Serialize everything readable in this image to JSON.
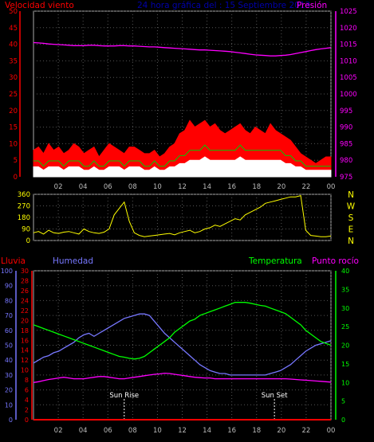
{
  "header": {
    "left_label": "Velocidad viento",
    "center_label": "24 hora gráfica del : 15 Septiembre 2013",
    "right_label": "Presión"
  },
  "colors": {
    "wind_axis": "#ff0000",
    "pressure": "#ff00ff",
    "direction": "#ffff00",
    "rain": "#ff0000",
    "humidity": "#7777ff",
    "temperature": "#00ff00",
    "dewpoint": "#ff00ff",
    "gust": "#ff0000",
    "avg_wind": "#ffffff",
    "wind_green": "#00cc00"
  },
  "chart_data": [
    {
      "type": "area",
      "panel": "wind-pressure",
      "x_ticks": [
        "02",
        "04",
        "06",
        "08",
        "10",
        "12",
        "14",
        "16",
        "18",
        "20",
        "22",
        "00"
      ],
      "y_left": {
        "label": "Velocidad viento",
        "ylim": [
          0,
          50
        ],
        "ticks": [
          0,
          5,
          10,
          15,
          20,
          25,
          30,
          35,
          40,
          45,
          50
        ]
      },
      "y_right": {
        "label": "Presión",
        "ylim": [
          975,
          1025
        ],
        "ticks": [
          975,
          980,
          985,
          990,
          995,
          1000,
          1005,
          1010,
          1015,
          1020,
          1025
        ]
      },
      "grid": true,
      "series": [
        {
          "name": "Velocidad viento",
          "axis": "left",
          "values": [
            8,
            9,
            7,
            10,
            8,
            9,
            7,
            8,
            10,
            9,
            7,
            8,
            9,
            6,
            8,
            10,
            9,
            8,
            7,
            9,
            9,
            8,
            7,
            7,
            8,
            6,
            7,
            9,
            10,
            13,
            14,
            17,
            15,
            16,
            17,
            15,
            16,
            14,
            13,
            14,
            15,
            16,
            14,
            13,
            15,
            14,
            13,
            16,
            14,
            13,
            12,
            11,
            9,
            7,
            6,
            5,
            4,
            5,
            6,
            6
          ]
        },
        {
          "axis": "left",
          "values": [
            3,
            3,
            2,
            3,
            3,
            3,
            2,
            3,
            3,
            3,
            2,
            2,
            3,
            2,
            2,
            3,
            3,
            3,
            2,
            3,
            3,
            3,
            2,
            2,
            3,
            2,
            2,
            3,
            3,
            4,
            4,
            5,
            5,
            5,
            6,
            5,
            5,
            5,
            5,
            5,
            5,
            6,
            5,
            5,
            5,
            5,
            5,
            5,
            5,
            5,
            4,
            4,
            3,
            3,
            2,
            2,
            2,
            2,
            2,
            2
          ]
        },
        {
          "name": "Presión",
          "axis": "right",
          "values": [
            1015.5,
            1015.4,
            1015.3,
            1015.1,
            1015.0,
            1014.9,
            1014.8,
            1014.7,
            1014.6,
            1014.6,
            1014.6,
            1014.7,
            1014.7,
            1014.6,
            1014.5,
            1014.5,
            1014.5,
            1014.6,
            1014.6,
            1014.5,
            1014.5,
            1014.4,
            1014.3,
            1014.2,
            1014.2,
            1014.1,
            1014.0,
            1013.9,
            1013.8,
            1013.7,
            1013.6,
            1013.5,
            1013.4,
            1013.3,
            1013.3,
            1013.2,
            1013.1,
            1013.0,
            1012.9,
            1012.8,
            1012.6,
            1012.4,
            1012.2,
            1012.0,
            1011.8,
            1011.7,
            1011.6,
            1011.5,
            1011.5,
            1011.6,
            1011.7,
            1011.9,
            1012.2,
            1012.5,
            1012.8,
            1013.1,
            1013.4,
            1013.6,
            1013.8,
            1014.0
          ]
        }
      ]
    },
    {
      "type": "line",
      "panel": "wind-direction",
      "x_ticks": [
        "02",
        "04",
        "06",
        "08",
        "10",
        "12",
        "14",
        "16",
        "18",
        "20",
        "22",
        "00"
      ],
      "y_left": {
        "ylim": [
          0,
          360
        ],
        "ticks": [
          0,
          90,
          180,
          270,
          360
        ]
      },
      "y_right_labels": [
        "N",
        "W",
        "S",
        "E",
        "N"
      ],
      "grid": true,
      "series": [
        {
          "values": [
            60,
            70,
            50,
            80,
            60,
            55,
            65,
            70,
            60,
            50,
            90,
            70,
            60,
            55,
            65,
            90,
            200,
            250,
            300,
            150,
            60,
            40,
            30,
            35,
            40,
            45,
            50,
            55,
            45,
            60,
            70,
            80,
            60,
            70,
            90,
            100,
            120,
            110,
            130,
            150,
            170,
            160,
            200,
            220,
            240,
            260,
            290,
            300,
            310,
            320,
            330,
            340,
            340,
            350,
            80,
            40,
            35,
            30,
            30,
            35
          ]
        }
      ]
    },
    {
      "type": "line",
      "panel": "rain-humidity-temp",
      "x_ticks": [
        "02",
        "04",
        "06",
        "08",
        "10",
        "12",
        "14",
        "16",
        "18",
        "20",
        "22",
        "00"
      ],
      "annotations": [
        "Sun Rise",
        "Sun Set"
      ],
      "axes": {
        "rain": {
          "label": "Lluvia",
          "ylim": [
            0,
            30
          ],
          "ticks": [
            0,
            2,
            4,
            6,
            8,
            10,
            12,
            14,
            16,
            18,
            20,
            22,
            24,
            26,
            28,
            30
          ]
        },
        "humidity": {
          "label": "Humedad",
          "ylim": [
            0,
            100
          ],
          "ticks": [
            0,
            10,
            20,
            30,
            40,
            50,
            60,
            70,
            80,
            90,
            100
          ]
        },
        "temperature": {
          "label": "Temperatura",
          "ylim": [
            0,
            40
          ],
          "ticks": [
            0,
            5,
            10,
            15,
            20,
            25,
            30,
            35,
            40
          ]
        },
        "dewpoint": {
          "label": "Punto rocío"
        }
      },
      "grid": true,
      "series": [
        {
          "name": "Humedad",
          "axis": "humidity",
          "values": [
            38,
            40,
            42,
            43,
            45,
            46,
            48,
            50,
            52,
            55,
            57,
            58,
            56,
            58,
            60,
            62,
            64,
            66,
            68,
            69,
            70,
            71,
            71,
            70,
            66,
            62,
            58,
            55,
            52,
            49,
            46,
            43,
            40,
            37,
            35,
            33,
            32,
            31,
            31,
            30,
            30,
            30,
            30,
            30,
            30,
            30,
            30,
            31,
            32,
            33,
            35,
            37,
            40,
            43,
            46,
            48,
            50,
            51,
            52,
            53
          ]
        },
        {
          "name": "Temperatura",
          "axis": "temperature",
          "values": [
            25.5,
            25,
            24.5,
            24,
            23.5,
            23,
            22.5,
            22,
            21.5,
            21,
            20.5,
            20,
            19.5,
            19,
            18.5,
            18,
            17.5,
            17,
            16.8,
            16.5,
            16.3,
            16.5,
            17,
            18,
            19,
            20,
            21,
            22,
            23.5,
            24.5,
            25.5,
            26.5,
            27,
            28,
            28.5,
            29,
            29.5,
            30,
            30.5,
            31,
            31.5,
            31.5,
            31.5,
            31.3,
            31,
            30.7,
            30.5,
            30,
            29.5,
            29,
            28.5,
            27.5,
            26.5,
            25.5,
            24,
            23,
            22,
            21,
            20.5,
            20
          ]
        },
        {
          "name": "Punto rocío",
          "axis": "temperature",
          "values": [
            10,
            10.2,
            10.5,
            10.8,
            11,
            11.2,
            11.4,
            11.2,
            11,
            11,
            11,
            11.2,
            11.4,
            11.6,
            11.6,
            11.4,
            11.2,
            11,
            11,
            11.2,
            11.4,
            11.6,
            11.8,
            12,
            12.2,
            12.3,
            12.5,
            12.4,
            12.2,
            12,
            11.8,
            11.6,
            11.4,
            11.3,
            11.2,
            11.2,
            11,
            11,
            11,
            11,
            11,
            11,
            11,
            11,
            11,
            11,
            11,
            11,
            11,
            11,
            11,
            10.9,
            10.8,
            10.7,
            10.6,
            10.5,
            10.4,
            10.3,
            10.2,
            10.1
          ]
        },
        {
          "name": "Lluvia",
          "axis": "rain",
          "values": [
            0,
            0,
            0,
            0,
            0,
            0,
            0,
            0,
            0,
            0,
            0,
            0,
            0,
            0,
            0,
            0,
            0,
            0,
            0,
            0,
            0,
            0,
            0,
            0,
            0,
            0,
            0,
            0,
            0,
            0,
            0,
            0,
            0,
            0,
            0,
            0,
            0,
            0,
            0,
            0,
            0,
            0,
            0,
            0,
            0,
            0,
            0,
            0,
            0,
            0,
            0,
            0,
            0,
            0,
            0,
            0,
            0,
            0,
            0,
            0
          ]
        }
      ]
    }
  ]
}
